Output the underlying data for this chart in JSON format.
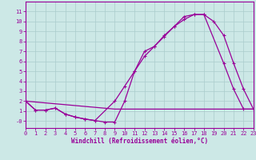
{
  "bg_color": "#cce8e6",
  "line_color": "#990099",
  "grid_color": "#aacccc",
  "curve1_x": [
    0,
    1,
    2,
    3,
    4,
    5,
    6,
    7,
    8,
    9,
    10,
    11,
    12,
    13,
    14,
    15,
    16,
    17,
    18,
    19,
    20,
    21,
    22,
    23
  ],
  "curve1_y": [
    2,
    1.1,
    1.1,
    1.3,
    0.7,
    0.4,
    0.2,
    0.05,
    -0.1,
    -0.1,
    2.0,
    5.0,
    7.0,
    7.5,
    8.5,
    9.5,
    10.5,
    10.7,
    10.7,
    10.0,
    8.6,
    5.8,
    3.2,
    1.2
  ],
  "curve2_x": [
    0,
    1,
    2,
    3,
    4,
    5,
    6,
    7,
    9,
    10,
    11,
    12,
    13,
    14,
    15,
    16,
    17,
    18,
    20,
    21,
    22,
    23
  ],
  "curve2_y": [
    2,
    1.1,
    1.1,
    1.3,
    0.7,
    0.4,
    0.2,
    0.05,
    2.0,
    3.5,
    5.0,
    6.5,
    7.5,
    8.6,
    9.5,
    10.2,
    10.7,
    10.7,
    5.8,
    3.2,
    1.2,
    1.2
  ],
  "curve3_x": [
    0,
    9,
    19,
    23
  ],
  "curve3_y": [
    2,
    1.2,
    1.2,
    1.2
  ],
  "ylim": [
    -0.7,
    12
  ],
  "xlim": [
    0,
    23
  ],
  "yticks": [
    0,
    1,
    2,
    3,
    4,
    5,
    6,
    7,
    8,
    9,
    10,
    11
  ],
  "ytick_labels": [
    "-0",
    "1",
    "2",
    "3",
    "4",
    "5",
    "6",
    "7",
    "8",
    "9",
    "10",
    "11"
  ],
  "xticks": [
    0,
    1,
    2,
    3,
    4,
    5,
    6,
    7,
    8,
    9,
    10,
    11,
    12,
    13,
    14,
    15,
    16,
    17,
    18,
    19,
    20,
    21,
    22,
    23
  ],
  "xlabel": "Windchill (Refroidissement éolien,°C)",
  "xlabel_fontsize": 5.5,
  "tick_fontsize": 5.0,
  "markersize": 3.0,
  "linewidth": 0.9
}
